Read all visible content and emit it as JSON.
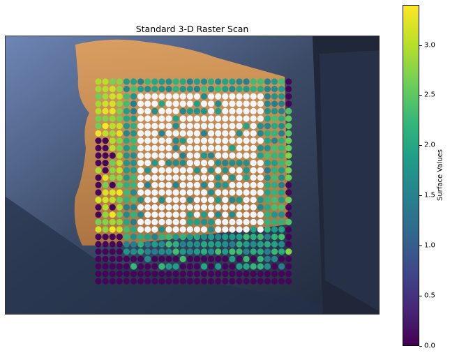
{
  "chart_data": {
    "type": "scatter",
    "title": "Standard 3-D Raster Scan",
    "xlabel": "",
    "ylabel": "",
    "background": "photograph of an orange tissue sample on a dark blue stage (axes hidden)",
    "colormap": "viridis",
    "colorbar": {
      "label": "Surface Values",
      "range": [
        0.0,
        3.4
      ],
      "ticks": [
        "0.0",
        "0.5",
        "1.0",
        "1.5",
        "2.0",
        "2.5",
        "3.0"
      ]
    },
    "grid_columns": 28,
    "grid_rows": 28,
    "value_summary": {
      "interior": "approx 1.0-2.2 (teal/blue)",
      "left_edge_band": "approx 2.5-3.4 (yellow-green)",
      "bottom_rows_and_outer_edge": "approx 0.0 (purple)",
      "marker_color_when_no_surface": "#ffffff (center region appears white/light)"
    }
  }
}
